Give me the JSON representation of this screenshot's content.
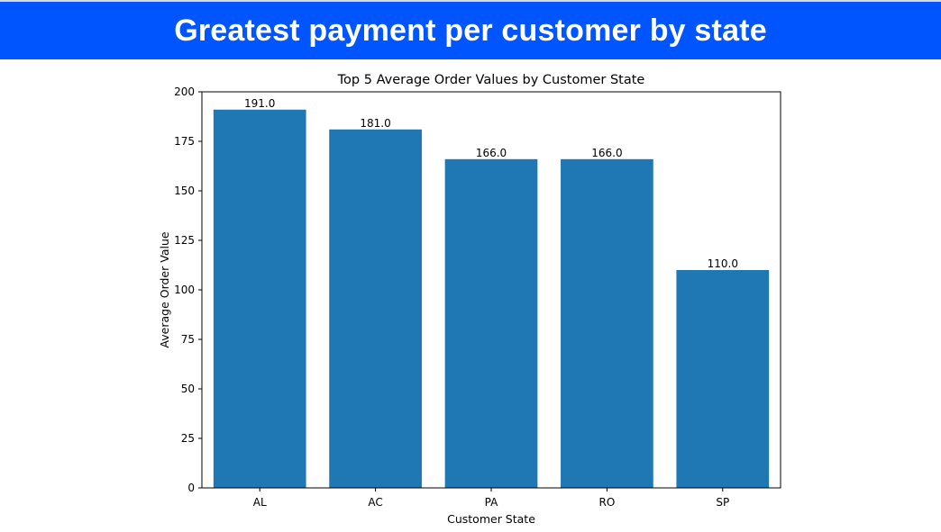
{
  "header": {
    "title": "Greatest payment per customer by state",
    "background_color": "#0055ff",
    "text_color": "#ffffff"
  },
  "chart_data": {
    "type": "bar",
    "title": "Top 5 Average Order Values by Customer State",
    "xlabel": "Customer State",
    "ylabel": "Average Order Value",
    "categories": [
      "AL",
      "AC",
      "PA",
      "RO",
      "SP"
    ],
    "values": [
      191.0,
      181.0,
      166.0,
      166.0,
      110.0
    ],
    "data_labels": [
      "191.0",
      "181.0",
      "166.0",
      "166.0",
      "110.0"
    ],
    "ylim": [
      0,
      200
    ],
    "yticks": [
      0,
      25,
      50,
      75,
      100,
      125,
      150,
      175,
      200
    ],
    "bar_color": "#1f77b4",
    "grid": false,
    "legend": false
  }
}
